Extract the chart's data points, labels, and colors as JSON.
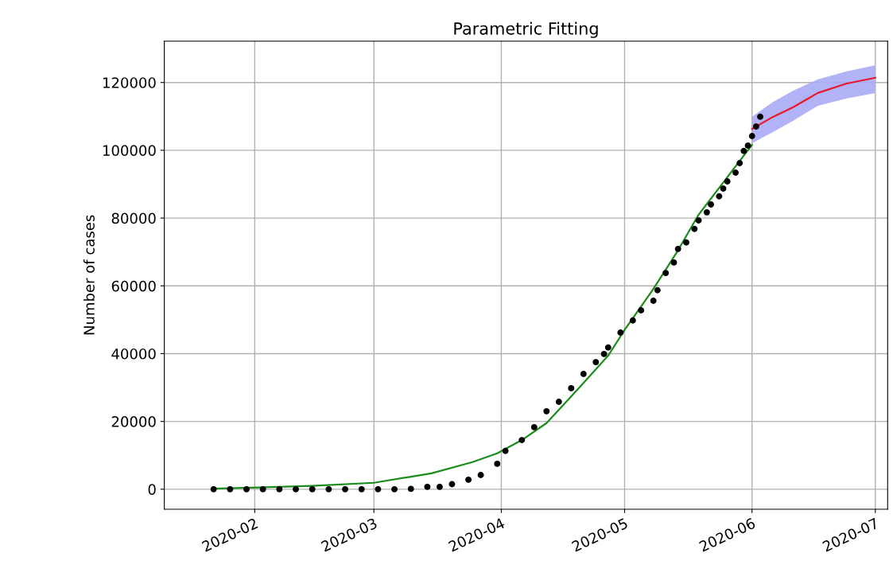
{
  "chart_data": {
    "type": "scatter",
    "title": "Parametric Fitting",
    "ylabel": "Number of cases",
    "xlim": [
      "2020-01-10",
      "2020-07-04"
    ],
    "ylim": [
      -5900,
      132200
    ],
    "xticks": [
      {
        "value": "2020-02-01",
        "label": "2020-02"
      },
      {
        "value": "2020-03-01",
        "label": "2020-03"
      },
      {
        "value": "2020-04-01",
        "label": "2020-04"
      },
      {
        "value": "2020-05-01",
        "label": "2020-05"
      },
      {
        "value": "2020-06-01",
        "label": "2020-06"
      },
      {
        "value": "2020-07-01",
        "label": "2020-07"
      }
    ],
    "yticks": [
      0,
      20000,
      40000,
      60000,
      80000,
      100000,
      120000
    ],
    "grid": true,
    "series": [
      {
        "color": "#000000",
        "marker": "circle",
        "x": [
          "2020-01-22",
          "2020-01-26",
          "2020-01-30",
          "2020-02-03",
          "2020-02-07",
          "2020-02-11",
          "2020-02-15",
          "2020-02-19",
          "2020-02-23",
          "2020-02-27",
          "2020-03-02",
          "2020-03-06",
          "2020-03-10",
          "2020-03-14",
          "2020-03-17",
          "2020-03-20",
          "2020-03-24",
          "2020-03-27",
          "2020-03-31",
          "2020-04-02",
          "2020-04-06",
          "2020-04-09",
          "2020-04-12",
          "2020-04-15",
          "2020-04-18",
          "2020-04-21",
          "2020-04-24",
          "2020-04-26",
          "2020-04-27",
          "2020-04-30",
          "2020-05-03",
          "2020-05-05",
          "2020-05-08",
          "2020-05-09",
          "2020-05-11",
          "2020-05-13",
          "2020-05-14",
          "2020-05-16",
          "2020-05-18",
          "2020-05-19",
          "2020-05-21",
          "2020-05-22",
          "2020-05-24",
          "2020-05-25",
          "2020-05-26",
          "2020-05-28",
          "2020-05-29",
          "2020-05-30",
          "2020-05-31",
          "2020-06-01",
          "2020-06-02",
          "2020-06-03"
        ],
        "values": [
          0,
          0,
          0,
          0,
          0,
          0,
          0,
          0,
          0,
          0,
          0,
          0,
          100,
          700,
          700,
          1500,
          2800,
          4200,
          7500,
          11300,
          14500,
          18300,
          23000,
          25800,
          29800,
          34000,
          37500,
          39900,
          41800,
          46200,
          49800,
          52800,
          55600,
          58700,
          63800,
          66900,
          70900,
          72800,
          76800,
          79300,
          81700,
          84000,
          86400,
          88700,
          90800,
          93400,
          96200,
          99800,
          101400,
          104200,
          107000,
          109900
        ]
      },
      {
        "type": "line",
        "color": "#1a8c1a",
        "marker": "none",
        "x": [
          "2020-01-22",
          "2020-02-02",
          "2020-02-15",
          "2020-03-01",
          "2020-03-15",
          "2020-03-25",
          "2020-03-31",
          "2020-04-06",
          "2020-04-12",
          "2020-04-20",
          "2020-04-27",
          "2020-05-01",
          "2020-05-08",
          "2020-05-14",
          "2020-05-19",
          "2020-05-25",
          "2020-06-01"
        ],
        "values": [
          200,
          500,
          1000,
          1900,
          4700,
          8000,
          10600,
          14500,
          19500,
          30000,
          39400,
          47000,
          59100,
          70500,
          81000,
          90500,
          101600
        ]
      },
      {
        "type": "line",
        "color": "#e8192c",
        "marker": "none",
        "x": [
          "2020-06-01",
          "2020-06-06",
          "2020-06-11",
          "2020-06-17",
          "2020-06-24",
          "2020-07-01"
        ],
        "values": [
          106300,
          109800,
          112700,
          116900,
          119700,
          121400
        ],
        "lower": [
          102100,
          105300,
          108700,
          113100,
          115300,
          116900
        ],
        "upper": [
          109900,
          114200,
          117600,
          120900,
          123300,
          125100
        ]
      }
    ]
  }
}
